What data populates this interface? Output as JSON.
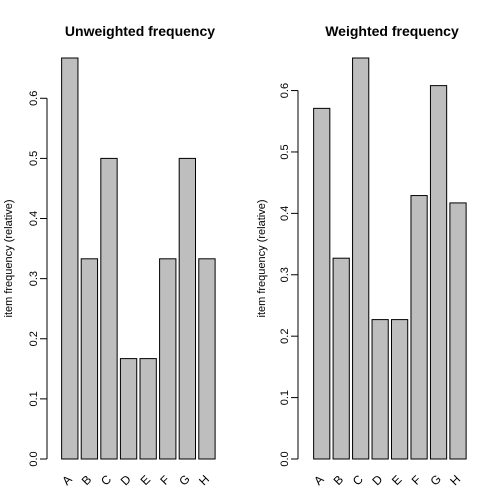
{
  "chart_data": [
    {
      "type": "bar",
      "title": "Unweighted frequency",
      "xlabel": "",
      "ylabel": "item frequency (relative)",
      "categories": [
        "A",
        "B",
        "C",
        "D",
        "E",
        "F",
        "G",
        "H"
      ],
      "values": [
        0.667,
        0.333,
        0.5,
        0.167,
        0.167,
        0.333,
        0.5,
        0.333
      ],
      "yticks": [
        "0.0",
        "0.1",
        "0.2",
        "0.3",
        "0.4",
        "0.5",
        "0.6"
      ],
      "ylim": [
        0,
        0.667
      ],
      "bar_color": "#bebebe",
      "grid": false
    },
    {
      "type": "bar",
      "title": "Weighted frequency",
      "xlabel": "",
      "ylabel": "item frequency (relative)",
      "categories": [
        "A",
        "B",
        "C",
        "D",
        "E",
        "F",
        "G",
        "H"
      ],
      "values": [
        0.571,
        0.327,
        0.653,
        0.227,
        0.227,
        0.429,
        0.608,
        0.417
      ],
      "yticks": [
        "0.0",
        "0.1",
        "0.2",
        "0.3",
        "0.4",
        "0.5",
        "0.6"
      ],
      "ylim": [
        0,
        0.653
      ],
      "bar_color": "#bebebe",
      "grid": false
    }
  ]
}
